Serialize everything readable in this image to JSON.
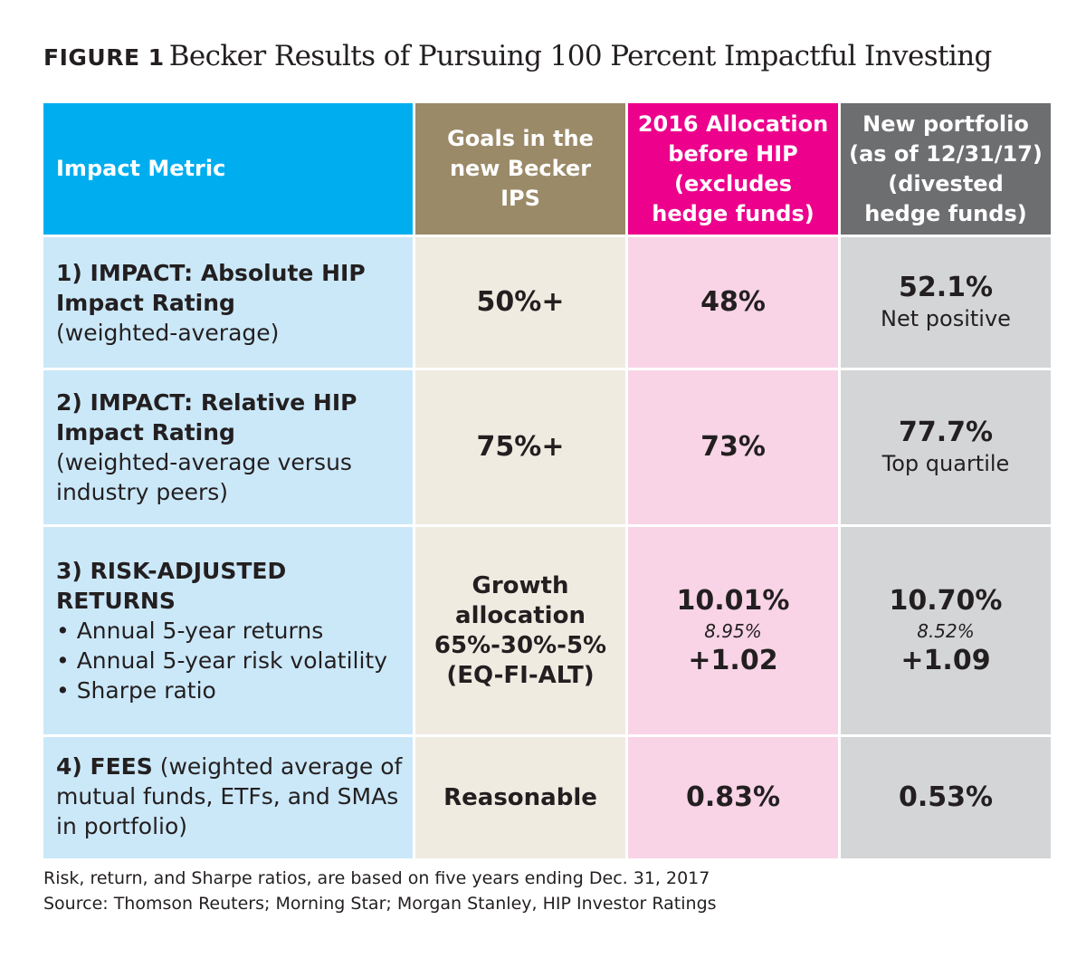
{
  "figure": {
    "label": "FIGURE 1",
    "title": "Becker Results of Pursuing 100 Percent Impactful Investing"
  },
  "headers": {
    "metric": "Impact Metric",
    "goals": "Goals in the new Becker IPS",
    "alloc2016": "2016 Allocation before HIP (excludes hedge funds)",
    "newportfolio": "New portfolio (as of 12/31/17) (divested hedge funds)"
  },
  "rows": [
    {
      "metric_bold": "1) IMPACT: Absolute HIP Impact Rating",
      "metric_note": "(weighted-average)",
      "goal": "50%+",
      "alloc2016": "48%",
      "newportfolio": "52.1%",
      "newportfolio_note": "Net positive"
    },
    {
      "metric_bold": "2) IMPACT: Relative HIP Impact Rating",
      "metric_note": "(weighted-average versus industry peers)",
      "goal": "75%+",
      "alloc2016": "73%",
      "newportfolio": "77.7%",
      "newportfolio_note": "Top quartile"
    },
    {
      "metric_bold": "3) RISK-ADJUSTED RETURNS",
      "bullets": [
        "• Annual 5-year returns",
        "• Annual 5-year risk volatility",
        "• Sharpe ratio"
      ],
      "goal": "Growth allocation 65%-30%-5% (EQ-FI-ALT)",
      "alloc2016": {
        "returns": "10.01%",
        "volatility": "8.95%",
        "sharpe": "+1.02"
      },
      "newportfolio": {
        "returns": "10.70%",
        "volatility": "8.52%",
        "sharpe": "+1.09"
      }
    },
    {
      "metric_bold": "4) FEES",
      "metric_note": "(weighted average of mutual funds, ETFs, and SMAs in portfolio)",
      "goal": "Reasonable",
      "alloc2016": "0.83%",
      "newportfolio": "0.53%"
    }
  ],
  "notes": [
    "Risk, return, and Sharpe ratios, are based on five years ending Dec. 31, 2017",
    "Source: Thomson Reuters; Morning Star; Morgan Stanley, HIP Investor Ratings"
  ],
  "colors": {
    "metric_header": "#00aeef",
    "goals_header": "#9b8a68",
    "alloc_header": "#ec008c",
    "portfolio_header": "#6d6e70",
    "metric_cell": "#cbe8f9",
    "goals_cell": "#efebe1",
    "alloc_cell": "#f8d4e6",
    "portfolio_cell": "#d4d5d7"
  }
}
